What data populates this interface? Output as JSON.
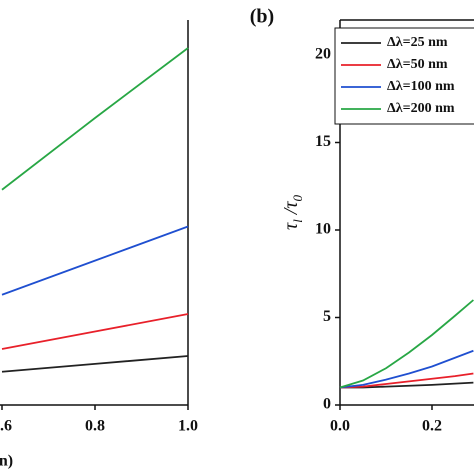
{
  "chart_data": [
    {
      "type": "line",
      "xlabel": "n)",
      "x": [
        0.6,
        0.8,
        1.0
      ],
      "xlim": [
        0.6,
        1.0
      ],
      "xticks": [
        {
          "value": 0.6,
          "label": "0.6"
        },
        {
          "value": 0.8,
          "label": "0.8"
        },
        {
          "value": 1.0,
          "label": "1.0"
        }
      ],
      "ylim": [
        0,
        22
      ],
      "series": [
        {
          "color": "#222222",
          "values": [
            1.9,
            2.35,
            2.8
          ]
        },
        {
          "color": "#e8202a",
          "values": [
            3.2,
            4.2,
            5.2
          ]
        },
        {
          "color": "#1f4fd0",
          "values": [
            6.3,
            8.25,
            10.2
          ]
        },
        {
          "color": "#28a745",
          "values": [
            12.3,
            16.4,
            20.4
          ]
        }
      ]
    },
    {
      "type": "line",
      "title": "(b)",
      "ylabel": [
        "τ",
        "l",
        " /τ",
        "0"
      ],
      "x": [
        0,
        0.05,
        0.1,
        0.15,
        0.2,
        0.25,
        0.29
      ],
      "xlim": [
        0,
        1.0
      ],
      "xticks": [
        {
          "value": 0,
          "label": "0.0"
        },
        {
          "value": 0.2,
          "label": "0.2"
        }
      ],
      "ylim": [
        0,
        22
      ],
      "yticks": [
        0,
        5,
        10,
        15,
        20
      ],
      "legend": "upper left",
      "series": [
        {
          "name": "Δλ=25 nm",
          "color": "#222222",
          "values": [
            1,
            1,
            1.05,
            1.1,
            1.15,
            1.22,
            1.28
          ]
        },
        {
          "name": "Δλ=50 nm",
          "color": "#e8202a",
          "values": [
            1,
            1.05,
            1.2,
            1.35,
            1.5,
            1.65,
            1.8
          ]
        },
        {
          "name": "Δλ=100 nm",
          "color": "#1f4fd0",
          "values": [
            1,
            1.15,
            1.45,
            1.8,
            2.2,
            2.7,
            3.1
          ]
        },
        {
          "name": "Δλ=200 nm",
          "color": "#28a745",
          "values": [
            1,
            1.4,
            2.1,
            3.0,
            4.0,
            5.1,
            6.0
          ]
        }
      ]
    }
  ]
}
